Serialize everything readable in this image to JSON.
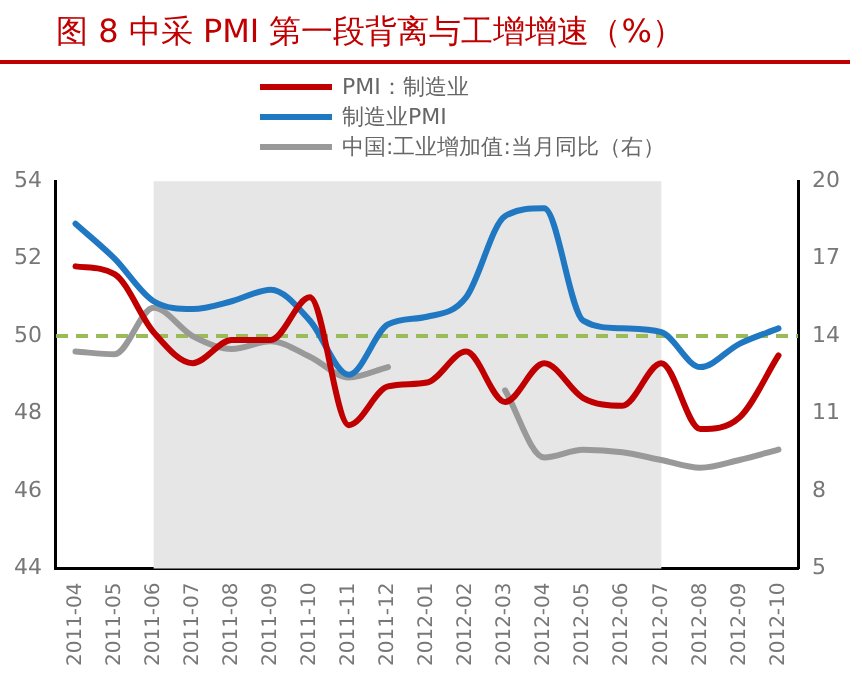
{
  "chart_data": {
    "type": "line",
    "title": "图 8 中采 PMI 第一段背离与工增增速（%）",
    "categories": [
      "2011-04",
      "2011-05",
      "2011-06",
      "2011-07",
      "2011-08",
      "2011-09",
      "2011-10",
      "2011-11",
      "2011-12",
      "2012-01",
      "2012-02",
      "2012-03",
      "2012-04",
      "2012-05",
      "2012-06",
      "2012-07",
      "2012-08",
      "2012-09",
      "2012-10"
    ],
    "series": [
      {
        "name": "PMI：制造业",
        "color": "#c00000",
        "values": [
          51.8,
          51.6,
          50.1,
          49.3,
          49.9,
          49.9,
          51.0,
          47.7,
          48.7,
          48.8,
          49.6,
          48.3,
          49.3,
          48.4,
          48.2,
          49.3,
          47.6,
          47.9,
          49.5
        ]
      },
      {
        "name": "制造业PMI",
        "color": "#1f78c1",
        "values": [
          52.9,
          52.0,
          50.9,
          50.7,
          50.9,
          51.2,
          50.4,
          49.0,
          50.3,
          50.5,
          51.0,
          53.1,
          53.3,
          50.4,
          50.2,
          50.1,
          49.2,
          49.8,
          50.2
        ]
      },
      {
        "name": "中国:工业增加值:当月同比（右）",
        "color": "#999999",
        "axis": "y2",
        "values": [
          13.4,
          13.3,
          15.1,
          14.0,
          13.5,
          13.8,
          13.2,
          12.4,
          12.8,
          null,
          null,
          11.9,
          9.3,
          9.6,
          9.5,
          9.2,
          8.9,
          9.2,
          9.6
        ]
      }
    ],
    "ylim": [
      44,
      54
    ],
    "yticks": [
      44,
      46,
      48,
      50,
      52,
      54
    ],
    "y2lim": [
      5,
      20
    ],
    "y2ticks": [
      5,
      8,
      11,
      14,
      17,
      20
    ],
    "ref_lines": [
      {
        "axis": "y",
        "value": 50,
        "color": "#9bbb59",
        "line_style": "dashed"
      }
    ],
    "bands": [
      {
        "axis": "x",
        "from": "2011-06",
        "to": "2012-07",
        "color": "#e6e6e6"
      }
    ],
    "legend": "top",
    "grid": false
  }
}
